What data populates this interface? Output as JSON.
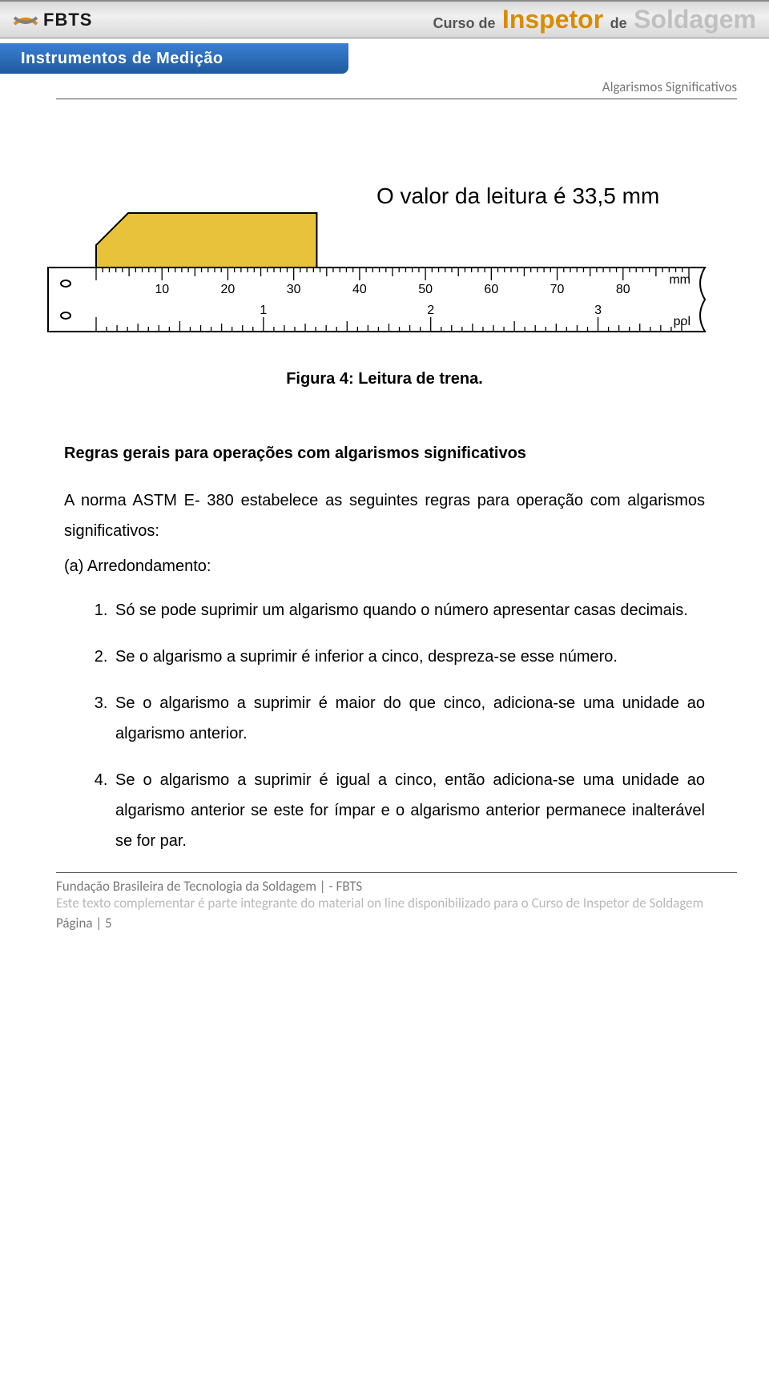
{
  "header": {
    "logo_text": "FBTS",
    "course_prefix": "Curso de",
    "course_word1": "Inspetor",
    "course_mid": "de",
    "course_word2": "Soldagem",
    "title_color_word1": "#d98c00",
    "title_color_word2": "#c0c0c0",
    "header_gradient_top": "#d8d8d8",
    "header_gradient_mid": "#f0f0f0",
    "logo_orange": "#e08a00",
    "logo_grey": "#808080"
  },
  "subbar": {
    "title": "Instrumentos de Medição",
    "background": "#2d6db8",
    "text_color": "#ffffff"
  },
  "breadcrumb": "Algarismos Significativos",
  "figure": {
    "reading_label": "O valor da leitura é 33,5 mm",
    "caption": "Figura 4: Leitura de trena.",
    "ruler": {
      "unit_top": "mm",
      "unit_bottom": "pol",
      "mm_labels": [
        "10",
        "20",
        "30",
        "40",
        "50",
        "60",
        "70",
        "80"
      ],
      "inch_labels": [
        "1",
        "2",
        "3"
      ],
      "mm_range": [
        0,
        90
      ],
      "inch_range": [
        0,
        3.5
      ],
      "object_mm": 33.5,
      "object_color": "#e8c23a",
      "ruler_bg": "#ffffff",
      "stroke": "#000000"
    }
  },
  "section": {
    "heading": "Regras gerais para operações com algarismos significativos",
    "intro": "A norma ASTM E- 380 estabelece as seguintes regras para operação com algarismos significativos:",
    "sub_label": "(a) Arredondamento:",
    "rules": [
      "Só se pode suprimir um algarismo quando o número apresentar casas decimais.",
      "Se o algarismo a suprimir é inferior a cinco, despreza-se esse número.",
      "Se o algarismo a suprimir é maior do que cinco, adiciona-se uma unidade ao algarismo anterior.",
      "Se o algarismo a suprimir é igual a cinco, então adiciona-se uma unidade ao algarismo anterior se este for ímpar e o algarismo anterior permanece inalterável se for par."
    ]
  },
  "footer": {
    "org": "Fundação Brasileira de Tecnologia da Soldagem | - FBTS",
    "note": "Este texto complementar é parte integrante do material on line disponibilizado para o Curso de Inspetor de Soldagem",
    "page": "Página | 5"
  },
  "colors": {
    "text": "#000000",
    "muted": "#7a7a7a",
    "faded": "#b8b8b8",
    "divider": "#555555"
  }
}
